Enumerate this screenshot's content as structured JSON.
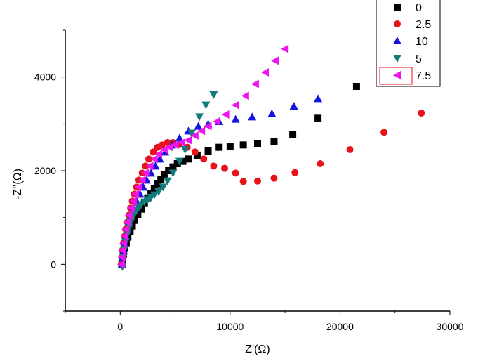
{
  "chart_data": {
    "type": "scatter",
    "xlabel": "Z'(Ω)",
    "ylabel": "-Z''(Ω)",
    "xlim": [
      -5000,
      30000
    ],
    "ylim": [
      -1000,
      5000
    ],
    "xticks": [
      {
        "value": 0,
        "label": "0"
      },
      {
        "value": 10000,
        "label": "10000"
      },
      {
        "value": 20000,
        "label": "20000"
      },
      {
        "value": 30000,
        "label": "30000"
      }
    ],
    "yticks": [
      {
        "value": 0,
        "label": "0"
      },
      {
        "value": 2000,
        "label": "2000"
      },
      {
        "value": 4000,
        "label": "4000"
      }
    ],
    "legend_position": "top-right",
    "series": [
      {
        "name": "0",
        "marker": "square",
        "color": "#000000",
        "x": [
          150,
          200,
          300,
          400,
          550,
          700,
          900,
          1100,
          1300,
          1600,
          1900,
          2200,
          2500,
          2800,
          3100,
          3400,
          3700,
          4000,
          4400,
          4800,
          5200,
          5700,
          6200,
          7000,
          8000,
          9000,
          10000,
          11200,
          12500,
          14000,
          15700,
          18000,
          21500
        ],
        "y": [
          0,
          100,
          220,
          340,
          460,
          580,
          700,
          820,
          940,
          1060,
          1180,
          1300,
          1420,
          1520,
          1620,
          1720,
          1820,
          1920,
          2000,
          2080,
          2150,
          2200,
          2250,
          2330,
          2420,
          2500,
          2520,
          2550,
          2580,
          2630,
          2780,
          3120,
          3800
        ]
      },
      {
        "name": "2.5",
        "marker": "circle",
        "color": "#e8121b",
        "x": [
          100,
          150,
          200,
          300,
          400,
          500,
          650,
          800,
          950,
          1100,
          1300,
          1500,
          1700,
          2000,
          2300,
          2600,
          3000,
          3400,
          3800,
          4300,
          4800,
          5400,
          6100,
          6800,
          7600,
          8500,
          9500,
          10500,
          11200,
          12500,
          14000,
          15900,
          18200,
          20900,
          24000,
          27400
        ],
        "y": [
          0,
          150,
          300,
          450,
          600,
          750,
          900,
          1050,
          1200,
          1350,
          1500,
          1650,
          1800,
          1950,
          2100,
          2250,
          2400,
          2500,
          2550,
          2600,
          2600,
          2560,
          2500,
          2400,
          2250,
          2100,
          2050,
          1950,
          1770,
          1780,
          1840,
          1960,
          2150,
          2450,
          2820,
          3230
        ]
      },
      {
        "name": "10",
        "marker": "triangle-up",
        "color": "#1414e0",
        "x": [
          150,
          200,
          300,
          400,
          500,
          650,
          800,
          1000,
          1200,
          1500,
          1800,
          2100,
          2400,
          2800,
          3200,
          3600,
          4100,
          4700,
          5400,
          6200,
          7100,
          8000,
          9000,
          10500,
          12000,
          13800,
          15800,
          18000
        ],
        "y": [
          0,
          150,
          300,
          450,
          600,
          750,
          900,
          1050,
          1200,
          1350,
          1500,
          1650,
          1800,
          1950,
          2100,
          2250,
          2400,
          2550,
          2700,
          2850,
          2950,
          3000,
          3050,
          3100,
          3150,
          3220,
          3380,
          3540
        ]
      },
      {
        "name": "5",
        "marker": "triangle-down",
        "color": "#127b7b",
        "x": [
          200,
          300,
          400,
          500,
          650,
          800,
          950,
          1100,
          1300,
          1500,
          1700,
          1900,
          2200,
          2500,
          2800,
          3100,
          3500,
          3900,
          4300,
          4800,
          5400,
          5900,
          6500,
          7200,
          7800,
          8500
        ],
        "y": [
          -50,
          150,
          320,
          480,
          640,
          780,
          900,
          1000,
          1080,
          1150,
          1210,
          1270,
          1330,
          1380,
          1430,
          1480,
          1550,
          1650,
          1780,
          1950,
          2200,
          2450,
          2800,
          3150,
          3400,
          3620
        ]
      },
      {
        "name": "7.5",
        "marker": "triangle-left",
        "color": "#ee14ee",
        "x": [
          100,
          150,
          200,
          300,
          400,
          500,
          650,
          800,
          1000,
          1200,
          1400,
          1700,
          2000,
          2300,
          2700,
          3100,
          3500,
          4000,
          4500,
          5000,
          5600,
          6200,
          6800,
          7400,
          8000,
          8800,
          9600,
          10500,
          11400,
          12300,
          13200,
          14100,
          15000
        ],
        "y": [
          0,
          150,
          300,
          450,
          600,
          750,
          900,
          1050,
          1200,
          1350,
          1500,
          1650,
          1800,
          1950,
          2100,
          2250,
          2350,
          2450,
          2500,
          2550,
          2600,
          2650,
          2750,
          2850,
          2950,
          3050,
          3200,
          3400,
          3600,
          3850,
          4100,
          4350,
          4600
        ]
      }
    ]
  }
}
